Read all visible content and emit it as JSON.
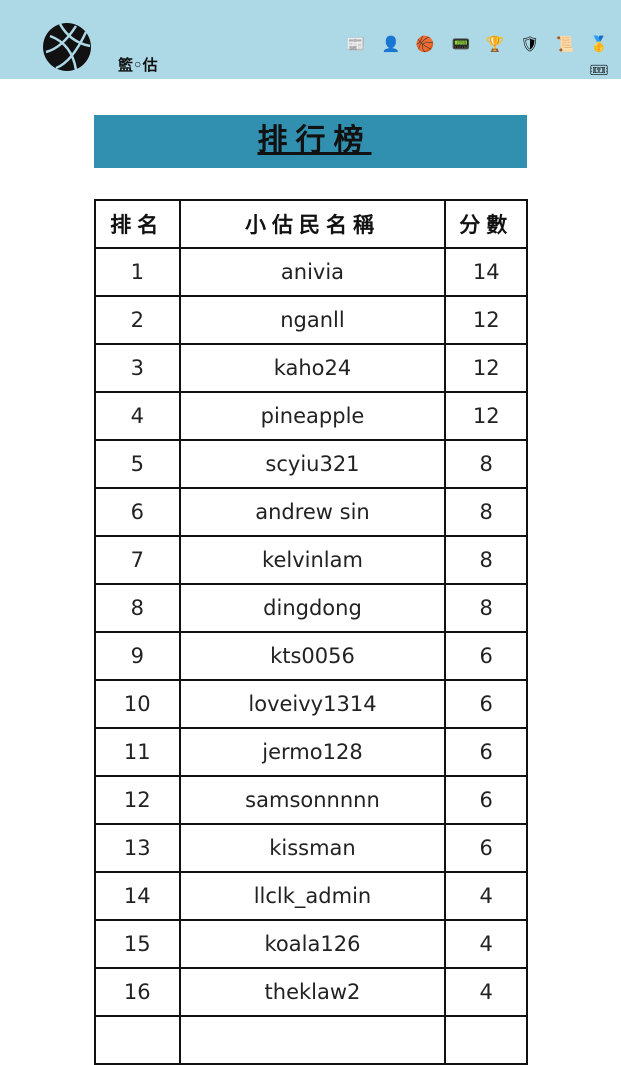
{
  "header": {
    "brand": "籃◦估",
    "icons": [
      "news-icon",
      "user-profile-icon",
      "basketball-board-icon",
      "scoreboard-icon",
      "trophy-icon",
      "team-badge-icon",
      "scroll-icon",
      "ranking-podium-icon",
      "ticket-icon"
    ]
  },
  "title": "排行榜",
  "table": {
    "columns": [
      "排名",
      "小估民名稱",
      "分數"
    ],
    "rows": [
      [
        "1",
        "anivia",
        "14"
      ],
      [
        "2",
        "nganll",
        "12"
      ],
      [
        "3",
        "kaho24",
        "12"
      ],
      [
        "4",
        "pineapple",
        "12"
      ],
      [
        "5",
        "scyiu321",
        "8"
      ],
      [
        "6",
        "andrew sin",
        "8"
      ],
      [
        "7",
        "kelvinlam",
        "8"
      ],
      [
        "8",
        "dingdong",
        "8"
      ],
      [
        "9",
        "kts0056",
        "6"
      ],
      [
        "10",
        "loveivy1314",
        "6"
      ],
      [
        "11",
        "jermo128",
        "6"
      ],
      [
        "12",
        "samsonnnnn",
        "6"
      ],
      [
        "13",
        "kissman",
        "6"
      ],
      [
        "14",
        "llclk_admin",
        "4"
      ],
      [
        "15",
        "koala126",
        "4"
      ],
      [
        "16",
        "theklaw2",
        "4"
      ]
    ]
  }
}
